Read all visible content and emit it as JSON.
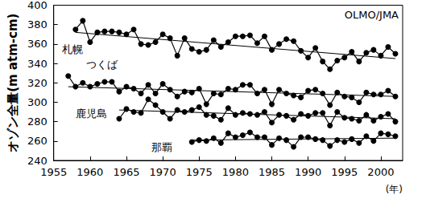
{
  "chart_data": {
    "type": "line",
    "ylabel": "オゾン全量(m atm-cm)",
    "xlabel": "(年)",
    "annotations": [
      "OLMO/JMA"
    ],
    "xlim": [
      1955,
      2003
    ],
    "xticks": [
      1955,
      1960,
      1965,
      1970,
      1975,
      1980,
      1985,
      1990,
      1995,
      2000
    ],
    "ylim": [
      240,
      400
    ],
    "yticks": [
      240,
      260,
      280,
      300,
      320,
      340,
      360,
      380,
      400
    ],
    "grid": false,
    "marker": "circle",
    "line_style": "solid",
    "series": [
      {
        "name": "札幌",
        "color": "#000000",
        "x": [
          1958,
          1959,
          1960,
          1961,
          1962,
          1963,
          1964,
          1965,
          1966,
          1967,
          1968,
          1969,
          1970,
          1971,
          1972,
          1973,
          1974,
          1975,
          1976,
          1977,
          1978,
          1979,
          1980,
          1981,
          1982,
          1983,
          1984,
          1985,
          1986,
          1987,
          1988,
          1989,
          1990,
          1991,
          1992,
          1993,
          1994,
          1995,
          1996,
          1997,
          1998,
          1999,
          2000,
          2001,
          2002
        ],
        "values": [
          375,
          384,
          362,
          372,
          373,
          373,
          372,
          370,
          375,
          360,
          359,
          362,
          370,
          366,
          348,
          366,
          355,
          352,
          354,
          364,
          357,
          362,
          368,
          368,
          369,
          361,
          368,
          354,
          360,
          365,
          363,
          353,
          346,
          356,
          342,
          334,
          343,
          346,
          352,
          342,
          351,
          354,
          348,
          357,
          350
        ],
        "trend": {
          "x": [
            1958,
            2002
          ],
          "values": [
            372,
            345
          ]
        }
      },
      {
        "name": "つくば",
        "color": "#000000",
        "x": [
          1957,
          1958,
          1959,
          1960,
          1961,
          1962,
          1963,
          1964,
          1965,
          1966,
          1967,
          1968,
          1969,
          1970,
          1971,
          1972,
          1973,
          1974,
          1975,
          1976,
          1977,
          1978,
          1979,
          1980,
          1981,
          1982,
          1983,
          1984,
          1985,
          1986,
          1987,
          1988,
          1989,
          1990,
          1991,
          1992,
          1993,
          1994,
          1995,
          1996,
          1997,
          1998,
          1999,
          2000,
          2001,
          2002
        ],
        "values": [
          327,
          316,
          320,
          316,
          319,
          321,
          321,
          311,
          316,
          314,
          309,
          318,
          309,
          319,
          313,
          306,
          311,
          310,
          314,
          298,
          309,
          308,
          314,
          313,
          318,
          318,
          309,
          313,
          298,
          313,
          309,
          307,
          305,
          312,
          313,
          309,
          297,
          310,
          306,
          305,
          300,
          310,
          308,
          308,
          312,
          306
        ],
        "trend": {
          "x": [
            1957,
            2002
          ],
          "values": [
            316,
            306
          ]
        }
      },
      {
        "name": "鹿児島",
        "color": "#000000",
        "x": [
          1964,
          1965,
          1966,
          1967,
          1968,
          1969,
          1970,
          1971,
          1972,
          1973,
          1974,
          1975,
          1976,
          1977,
          1978,
          1979,
          1980,
          1981,
          1982,
          1983,
          1984,
          1985,
          1986,
          1987,
          1988,
          1989,
          1990,
          1991,
          1992,
          1993,
          1994,
          1995,
          1996,
          1997,
          1998,
          1999,
          2000,
          2001,
          2002
        ],
        "values": [
          283,
          293,
          290,
          289,
          303,
          297,
          290,
          283,
          292,
          290,
          292,
          295,
          287,
          286,
          282,
          294,
          287,
          289,
          288,
          287,
          290,
          279,
          287,
          286,
          282,
          288,
          286,
          289,
          289,
          276,
          290,
          284,
          283,
          281,
          287,
          281,
          285,
          288,
          280
        ],
        "trend": {
          "x": [
            1964,
            2002
          ],
          "values": [
            292,
            283
          ]
        }
      },
      {
        "name": "那覇",
        "color": "#000000",
        "x": [
          1974,
          1975,
          1976,
          1977,
          1978,
          1979,
          1980,
          1981,
          1982,
          1983,
          1984,
          1985,
          1986,
          1987,
          1988,
          1989,
          1990,
          1991,
          1992,
          1993,
          1994,
          1995,
          1996,
          1997,
          1998,
          1999,
          2000,
          2001,
          2002
        ],
        "values": [
          259,
          261,
          260,
          263,
          258,
          268,
          264,
          266,
          269,
          264,
          264,
          256,
          263,
          261,
          254,
          264,
          264,
          262,
          261,
          255,
          261,
          259,
          262,
          258,
          265,
          260,
          268,
          267,
          265
        ],
        "trend": {
          "x": [
            1974,
            2002
          ],
          "values": [
            261,
            263
          ]
        }
      }
    ]
  }
}
